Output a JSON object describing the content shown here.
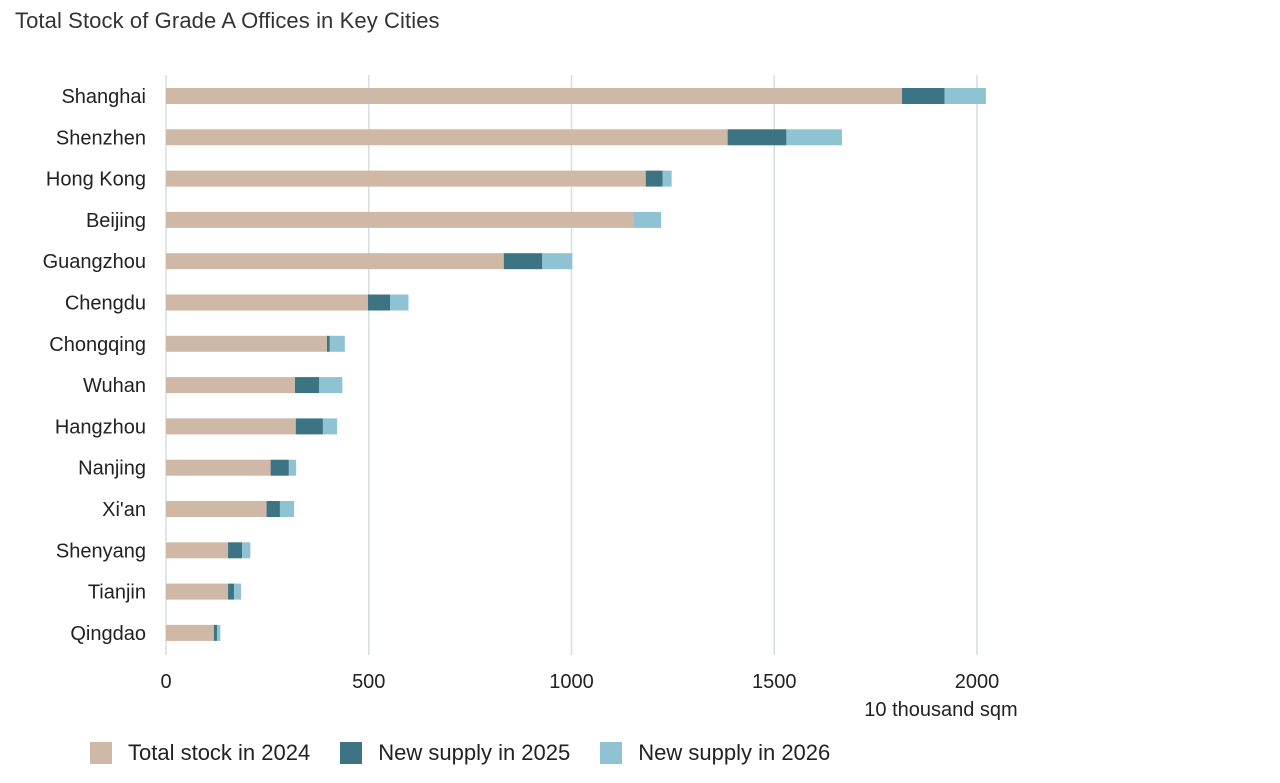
{
  "chart_data": {
    "type": "bar",
    "orientation": "horizontal",
    "stacked": true,
    "title": "Total Stock of Grade A Offices in Key Cities",
    "xlabel": "10 thousand sqm",
    "ylabel": "",
    "xlim": [
      0,
      2000
    ],
    "xticks": [
      0,
      500,
      1000,
      1500,
      2000
    ],
    "grid": "vertical",
    "legend_position": "bottom",
    "categories": [
      "Shanghai",
      "Shenzhen",
      "Hong Kong",
      "Beijing",
      "Guangzhou",
      "Chengdu",
      "Chongqing",
      "Wuhan",
      "Hangzhou",
      "Nanjing",
      "Xi'an",
      "Shenyang",
      "Tianjin",
      "Qingdao"
    ],
    "series": [
      {
        "name": "Total stock in 2024",
        "color": "#cfb8a6",
        "values": [
          1815,
          1385,
          1183,
          1153,
          833,
          498,
          397,
          318,
          320,
          258,
          248,
          153,
          153,
          118
        ]
      },
      {
        "name": "New supply in 2025",
        "color": "#3d7484",
        "values": [
          105,
          145,
          42,
          0,
          95,
          55,
          7,
          60,
          67,
          45,
          33,
          35,
          15,
          8
        ]
      },
      {
        "name": "New supply in 2026",
        "color": "#8fc3d4",
        "values": [
          102,
          137,
          22,
          68,
          74,
          45,
          37,
          57,
          35,
          18,
          35,
          20,
          17,
          8
        ]
      }
    ]
  }
}
